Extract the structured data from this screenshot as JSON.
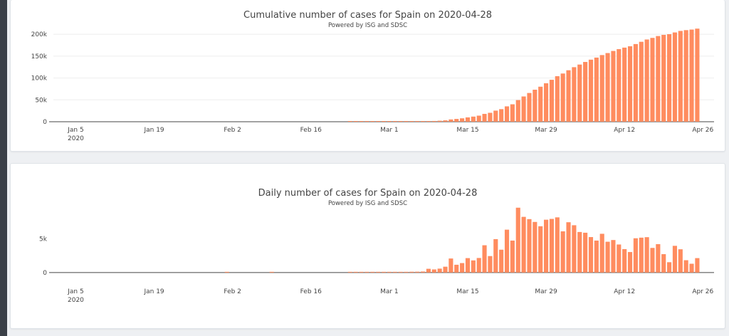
{
  "charts": [
    {
      "title": "Cumulative number of cases for Spain on 2020-04-28",
      "subtitle": "Powered by ISG and SDSC"
    },
    {
      "title": "Daily number of cases for Spain on 2020-04-28",
      "subtitle": "Powered by ISG and SDSC"
    }
  ],
  "chart_data": [
    {
      "type": "bar",
      "title": "Cumulative number of cases for Spain on 2020-04-28",
      "subtitle": "Powered by ISG and SDSC",
      "color": "#ff8c5f",
      "x_start": "2020-01-01",
      "x_end": "2020-04-28",
      "x_ticks": [
        {
          "date": "2020-01-05",
          "label": "Jan 5",
          "sublabel": "2020"
        },
        {
          "date": "2020-01-19",
          "label": "Jan 19"
        },
        {
          "date": "2020-02-02",
          "label": "Feb 2"
        },
        {
          "date": "2020-02-16",
          "label": "Feb 16"
        },
        {
          "date": "2020-03-01",
          "label": "Mar 1"
        },
        {
          "date": "2020-03-15",
          "label": "Mar 15"
        },
        {
          "date": "2020-03-29",
          "label": "Mar 29"
        },
        {
          "date": "2020-04-12",
          "label": "Apr 12"
        },
        {
          "date": "2020-04-26",
          "label": "Apr 26"
        }
      ],
      "y_ticks": [
        {
          "value": 0,
          "label": "0"
        },
        {
          "value": 50000,
          "label": "50k"
        },
        {
          "value": 100000,
          "label": "100k"
        },
        {
          "value": 150000,
          "label": "150k"
        },
        {
          "value": 200000,
          "label": "200k"
        }
      ],
      "ylim": [
        0,
        210000
      ],
      "grid": true,
      "first_date": "2020-02-23",
      "values": [
        2,
        2,
        10,
        25,
        32,
        45,
        84,
        120,
        165,
        228,
        282,
        401,
        525,
        674,
        1231,
        1695,
        2277,
        3146,
        5232,
        6391,
        7798,
        9942,
        11748,
        13910,
        17963,
        20410,
        25374,
        28768,
        35136,
        39885,
        49515,
        57786,
        65719,
        73235,
        80110,
        87956,
        95923,
        104118,
        110238,
        117710,
        124736,
        130759,
        136675,
        141942,
        146690,
        152446,
        157022,
        161852,
        166019,
        169496,
        172541,
        177633,
        182816,
        188068,
        191726,
        195944,
        198674,
        200210,
        204178,
        207634,
        209465,
        210773,
        212917
      ]
    },
    {
      "type": "bar",
      "title": "Daily number of cases for Spain on 2020-04-28",
      "subtitle": "Powered by ISG and SDSC",
      "color": "#ff8c5f",
      "x_start": "2020-01-01",
      "x_end": "2020-04-28",
      "x_ticks": [
        {
          "date": "2020-01-05",
          "label": "Jan 5",
          "sublabel": "2020"
        },
        {
          "date": "2020-01-19",
          "label": "Jan 19"
        },
        {
          "date": "2020-02-02",
          "label": "Feb 2"
        },
        {
          "date": "2020-02-16",
          "label": "Feb 16"
        },
        {
          "date": "2020-03-01",
          "label": "Mar 1"
        },
        {
          "date": "2020-03-15",
          "label": "Mar 15"
        },
        {
          "date": "2020-03-29",
          "label": "Mar 29"
        },
        {
          "date": "2020-04-12",
          "label": "Apr 12"
        },
        {
          "date": "2020-04-26",
          "label": "Apr 26"
        }
      ],
      "y_ticks": [
        {
          "value": 0,
          "label": "0"
        },
        {
          "value": 5000,
          "label": "5k"
        }
      ],
      "ylim": [
        -1600,
        9500
      ],
      "grid": false,
      "sparse_points": [
        {
          "date": "2020-02-01",
          "value": 1
        },
        {
          "date": "2020-02-09",
          "value": 1
        }
      ],
      "first_date": "2020-02-23",
      "values": [
        0,
        0,
        8,
        15,
        7,
        13,
        39,
        36,
        45,
        63,
        54,
        119,
        124,
        149,
        557,
        464,
        582,
        869,
        2086,
        1159,
        1407,
        2144,
        1806,
        2162,
        4053,
        2447,
        4964,
        3394,
        6368,
        4749,
        9630,
        8271,
        7933,
        7516,
        6875,
        7846,
        7967,
        8195,
        6120,
        7472,
        7026,
        6023,
        5916,
        5267,
        4748,
        5756,
        4576,
        4830,
        4167,
        3477,
        3045,
        5092,
        5183,
        5252,
        3658,
        4218,
        2730,
        1536,
        3968,
        3456,
        1831,
        1308,
        2144
      ]
    }
  ]
}
